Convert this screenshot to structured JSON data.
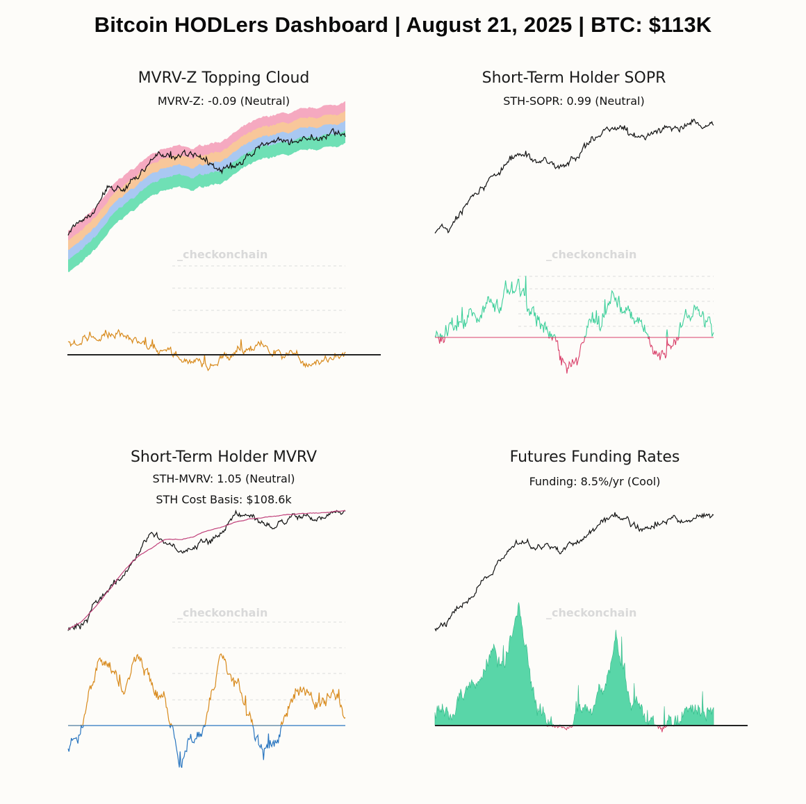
{
  "header": {
    "title": "Bitcoin HODLers Dashboard | August 21, 2025 | BTC: $113K"
  },
  "watermark": "_checkonchain",
  "colors": {
    "price": "#111111",
    "oscillator": "#d88a1c",
    "positive": "#3ccf9a",
    "negative": "#d9406a",
    "below": "#2a76c0",
    "cost_basis": "#c0407a",
    "cloud": [
      "#6fe0b5",
      "#a9c8f2",
      "#f8c79a",
      "#f5a9c0"
    ]
  },
  "panels": [
    {
      "title": "MVRV-Z Topping Cloud",
      "subtitles": [
        "MVRV-Z: -0.09 (Neutral)"
      ]
    },
    {
      "title": "Short-Term Holder SOPR",
      "subtitles": [
        "STH-SOPR: 0.99 (Neutral)"
      ]
    },
    {
      "title": "Short-Term Holder MVRV",
      "subtitles": [
        "STH-MVRV: 1.05 (Neutral)",
        "STH Cost Basis: $108.6k"
      ]
    },
    {
      "title": "Futures Funding Rates",
      "subtitles": [
        "Funding: 8.5%/yr (Cool)"
      ]
    }
  ],
  "chart_data": [
    {
      "type": "area",
      "title": "MVRV-Z Topping Cloud",
      "series": [
        {
          "values": [
            0.3,
            0.36,
            0.47,
            0.6,
            0.62,
            0.72,
            0.8,
            0.86,
            0.84,
            0.88,
            0.8,
            0.74,
            0.77,
            0.84,
            0.92,
            0.95,
            0.93,
            0.98,
            0.96,
            1.0,
            0.98
          ]
        },
        {
          "values": [
            0.04,
            0.1,
            0.2,
            0.33,
            0.43,
            0.5,
            0.6,
            0.62,
            0.64,
            0.62,
            0.66,
            0.68,
            0.74,
            0.8,
            0.84,
            0.87,
            0.88,
            0.9,
            0.92,
            0.94,
            0.96
          ]
        },
        {
          "values": [
            0.06,
            0.07,
            0.09,
            0.1,
            0.08,
            0.05,
            0.03,
            0.02,
            -0.01,
            -0.05,
            -0.04,
            -0.02,
            0.02,
            0.04,
            0.03,
            0.02,
            0.0,
            -0.03,
            -0.04,
            -0.02,
            0.0
          ]
        }
      ]
    },
    {
      "type": "line",
      "title": "Short-Term Holder SOPR",
      "series": [
        {
          "values": [
            0.3,
            0.32,
            0.45,
            0.58,
            0.64,
            0.72,
            0.82,
            0.78,
            0.76,
            0.74,
            0.78,
            0.86,
            0.96,
            0.98,
            0.95,
            0.9,
            0.96,
            1.0,
            0.98,
            1.0,
            0.99
          ]
        },
        {
          "values": [
            -0.04,
            0.02,
            0.1,
            0.28,
            0.35,
            0.4,
            0.62,
            0.2,
            0.12,
            -0.1,
            -0.3,
            0.05,
            0.28,
            0.48,
            0.22,
            0.12,
            -0.22,
            -0.05,
            0.22,
            0.3,
            0.05
          ]
        }
      ]
    },
    {
      "type": "line",
      "title": "Short-Term Holder MVRV",
      "series": [
        {
          "values": [
            0.18,
            0.24,
            0.34,
            0.46,
            0.58,
            0.68,
            0.74,
            0.8,
            0.8,
            0.82,
            0.86,
            0.88,
            0.92,
            0.94,
            0.95,
            0.96,
            0.97,
            0.98,
            0.98,
            0.99,
            1.0
          ]
        },
        {
          "values": [
            0.18,
            0.22,
            0.35,
            0.47,
            0.55,
            0.72,
            0.82,
            0.78,
            0.74,
            0.75,
            0.78,
            0.86,
            0.96,
            0.98,
            0.92,
            0.87,
            0.92,
            0.96,
            0.94,
            0.98,
            0.98
          ]
        },
        {
          "values": [
            -0.2,
            0.05,
            0.55,
            0.6,
            0.36,
            0.72,
            0.42,
            0.18,
            -0.3,
            -0.22,
            0.1,
            0.7,
            0.46,
            0.12,
            -0.3,
            -0.18,
            0.22,
            0.42,
            0.2,
            0.35,
            0.1
          ]
        }
      ]
    },
    {
      "type": "area",
      "title": "Futures Funding Rates",
      "series": [
        {
          "values": [
            0.18,
            0.24,
            0.35,
            0.48,
            0.58,
            0.72,
            0.82,
            0.78,
            0.76,
            0.74,
            0.78,
            0.86,
            0.96,
            0.98,
            0.92,
            0.87,
            0.92,
            0.96,
            0.94,
            0.98,
            0.98
          ]
        },
        {
          "values": [
            0.08,
            0.12,
            0.22,
            0.38,
            0.55,
            0.4,
            0.95,
            0.28,
            0.1,
            0.02,
            -0.02,
            0.15,
            0.18,
            0.62,
            0.18,
            0.06,
            -0.05,
            0.04,
            0.08,
            0.1,
            0.18
          ]
        }
      ]
    }
  ]
}
